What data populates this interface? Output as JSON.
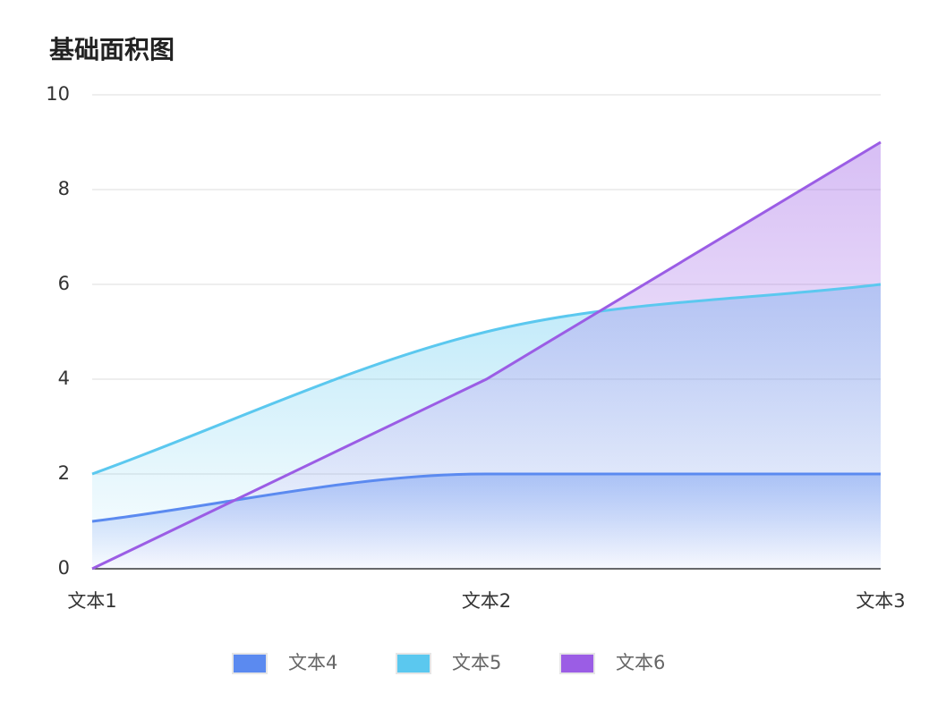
{
  "chart_data": {
    "type": "area",
    "title": "基础面积图",
    "categories": [
      "文本1",
      "文本2",
      "文本3"
    ],
    "series": [
      {
        "name": "文本4",
        "color": "#5B8AF0",
        "smooth": true,
        "values": [
          1,
          2,
          2
        ]
      },
      {
        "name": "文本5",
        "color": "#5BC8EF",
        "smooth": true,
        "values": [
          2,
          5,
          6
        ]
      },
      {
        "name": "文本6",
        "color": "#9B5DE5",
        "smooth": false,
        "values": [
          0,
          4,
          9
        ]
      }
    ],
    "ylim": [
      0,
      10
    ],
    "yticks": [
      0,
      2,
      4,
      6,
      8,
      10
    ],
    "grid": true,
    "legend": "bottom"
  }
}
